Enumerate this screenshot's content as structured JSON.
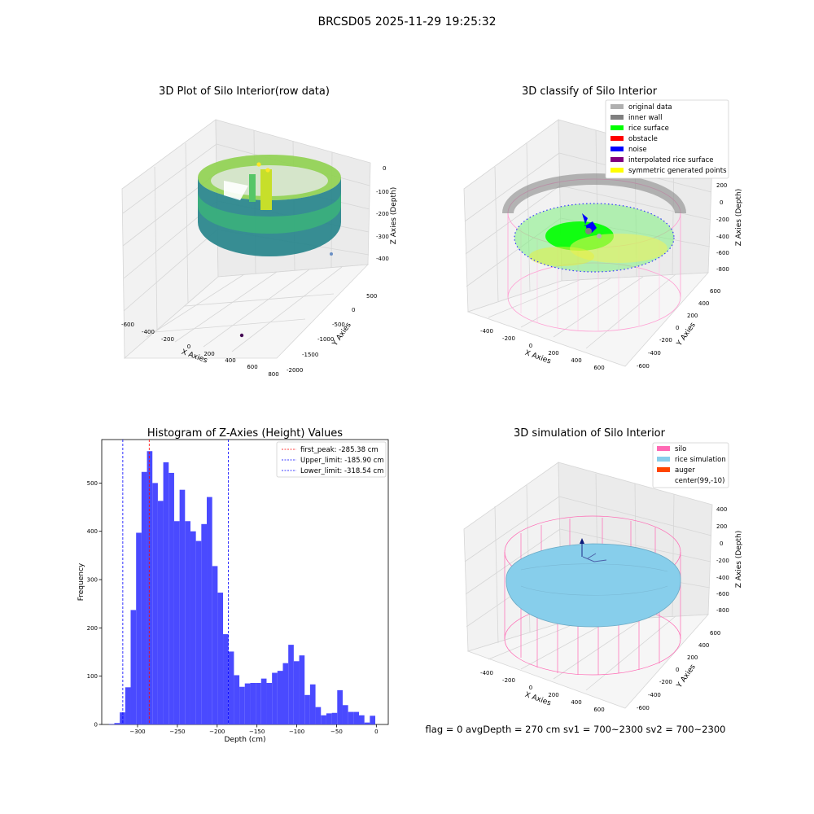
{
  "figure": {
    "suptitle": "BRCSD05 2025-11-29 19:25:32",
    "footer": "flag = 0     avgDepth = 270 cm  sv1 = 700~2300  sv2 = 700~2300"
  },
  "panels": {
    "raw": {
      "title": "3D Plot of Silo Interior(row data)",
      "xlabel": "X Axies",
      "ylabel": "Y Axies",
      "zlabel": "Z Axies (Depth)",
      "xticks": [
        "-600",
        "-400",
        "-200",
        "0",
        "200",
        "400",
        "600",
        "800"
      ],
      "yticks": [
        "500",
        "0",
        "-500",
        "-1000",
        "-1500",
        "-2000"
      ],
      "zticks": [
        "0",
        "-100",
        "-200",
        "-300",
        "-400"
      ]
    },
    "classify": {
      "title": "3D classify of Silo Interior",
      "xlabel": "X Axies",
      "ylabel": "Y Axies",
      "zlabel": "Z Axies (Depth)",
      "xticks": [
        "-400",
        "-200",
        "0",
        "200",
        "400",
        "600"
      ],
      "yticks": [
        "600",
        "400",
        "200",
        "0",
        "-200",
        "-400",
        "-600"
      ],
      "zticks": [
        "200",
        "0",
        "-200",
        "-400",
        "-600",
        "-800"
      ],
      "legend": [
        {
          "label": "original data",
          "color": "#b0b0b0"
        },
        {
          "label": "inner wall",
          "color": "#808080"
        },
        {
          "label": "rice surface",
          "color": "#00ff00"
        },
        {
          "label": "obstacle",
          "color": "#ff0000"
        },
        {
          "label": "noise",
          "color": "#0000ff"
        },
        {
          "label": "interpolated rice surface",
          "color": "#800080"
        },
        {
          "label": "symmetric generated points",
          "color": "#ffff00"
        }
      ]
    },
    "simulation": {
      "title": "3D simulation of Silo Interior",
      "xlabel": "X Axies",
      "ylabel": "Y Axies",
      "zlabel": "Z Axies (Depth)",
      "xticks": [
        "-400",
        "-200",
        "0",
        "200",
        "400",
        "600"
      ],
      "yticks": [
        "600",
        "400",
        "200",
        "0",
        "-200",
        "-400",
        "-600"
      ],
      "zticks": [
        "400",
        "200",
        "0",
        "-200",
        "-400",
        "-600",
        "-800"
      ],
      "legend": [
        {
          "label": "silo",
          "color": "#ff69b4"
        },
        {
          "label": "rice simulation",
          "color": "#87ceeb"
        },
        {
          "label": "auger",
          "color": "#ff4500"
        },
        {
          "label": "center(99,-10)",
          "color": ""
        }
      ]
    }
  },
  "chart_data": {
    "type": "bar",
    "title": "Histogram of Z-Axies (Height) Values",
    "xlabel": "Depth (cm)",
    "ylabel": "Frequency",
    "xlim": [
      -345,
      15
    ],
    "ylim": [
      0,
      590
    ],
    "xticks": [
      -300,
      -250,
      -200,
      -150,
      -100,
      -50,
      0
    ],
    "yticks": [
      0,
      100,
      200,
      300,
      400,
      500
    ],
    "bin_start": -336,
    "bin_width": 6.83,
    "bar_color": "#4a4aff",
    "counts": [
      1,
      3,
      25,
      77,
      237,
      397,
      523,
      566,
      500,
      463,
      543,
      521,
      421,
      486,
      421,
      400,
      380,
      415,
      471,
      328,
      273,
      187,
      151,
      102,
      78,
      85,
      86,
      86,
      95,
      86,
      107,
      111,
      127,
      165,
      131,
      143,
      61,
      83,
      36,
      19,
      23,
      24,
      71,
      40,
      26,
      26,
      19,
      4,
      18
    ],
    "lines": [
      {
        "label": "first_peak: -285.38 cm",
        "x": -285.38,
        "color": "#ff0000"
      },
      {
        "label": "Upper_limit: -185.90 cm",
        "x": -185.9,
        "color": "#0000ff"
      },
      {
        "label": "Lower_limit: -318.54 cm",
        "x": -318.54,
        "color": "#0000ff"
      }
    ]
  }
}
